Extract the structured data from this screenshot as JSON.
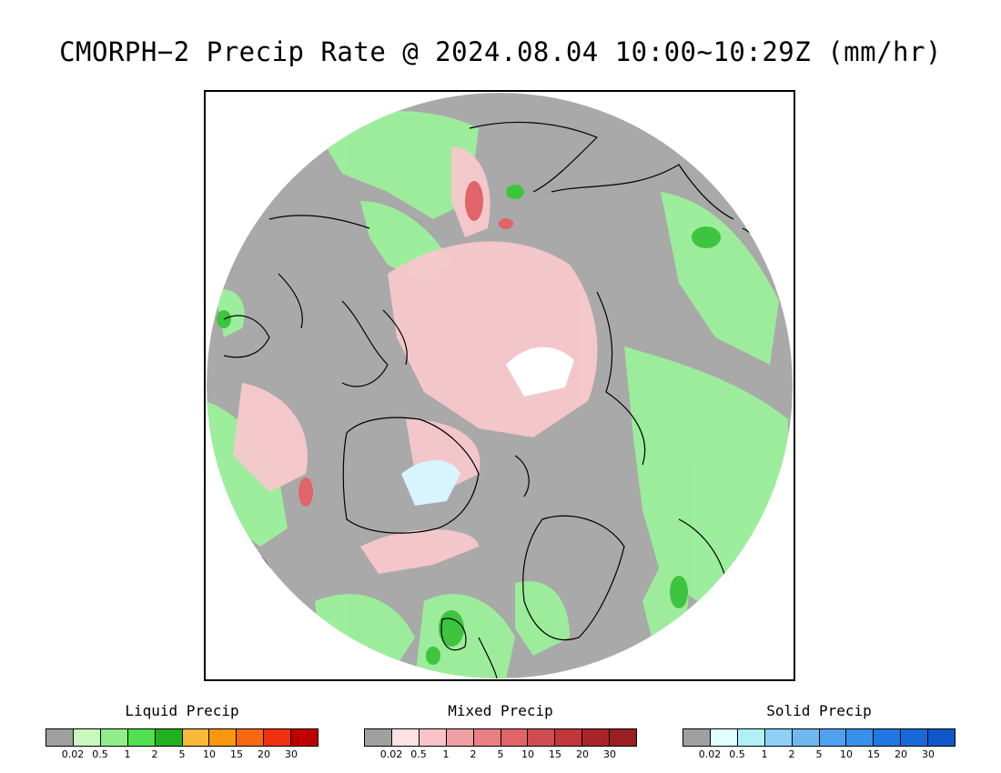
{
  "title": "CMORPH−2 Precip Rate @ 2024.08.04 10:00~10:29Z (mm/hr)",
  "map": {
    "projection": "north-polar-stereographic",
    "background_color": "#a9a9a9",
    "coastline_color": "#000000"
  },
  "legends": [
    {
      "key": "liquid",
      "label": "Liquid Precip",
      "colors": [
        "#a0a0a0",
        "#c8f7c0",
        "#90ee88",
        "#50e050",
        "#20b020",
        "#f8b838",
        "#f89810",
        "#f86810",
        "#f03010",
        "#c00000"
      ],
      "ticks": [
        "0.02",
        "0.5",
        "1",
        "2",
        "5",
        "10",
        "15",
        "20",
        "30"
      ]
    },
    {
      "key": "mixed",
      "label": "Mixed Precip",
      "colors": [
        "#a0a0a0",
        "#fde2e4",
        "#f8c4c8",
        "#f0a0a4",
        "#e88084",
        "#e06468",
        "#d04c50",
        "#c0383c",
        "#a82428",
        "#982020"
      ],
      "ticks": [
        "0.02",
        "0.5",
        "1",
        "2",
        "5",
        "10",
        "15",
        "20",
        "30"
      ]
    },
    {
      "key": "solid",
      "label": "Solid Precip",
      "colors": [
        "#a0a0a0",
        "#e0ffff",
        "#b0f0f8",
        "#90d0f8",
        "#70b8f0",
        "#50a0f0",
        "#3890e8",
        "#2078e0",
        "#1868d8",
        "#1058c8"
      ],
      "ticks": [
        "0.02",
        "0.5",
        "1",
        "2",
        "5",
        "10",
        "15",
        "20",
        "30"
      ]
    }
  ]
}
